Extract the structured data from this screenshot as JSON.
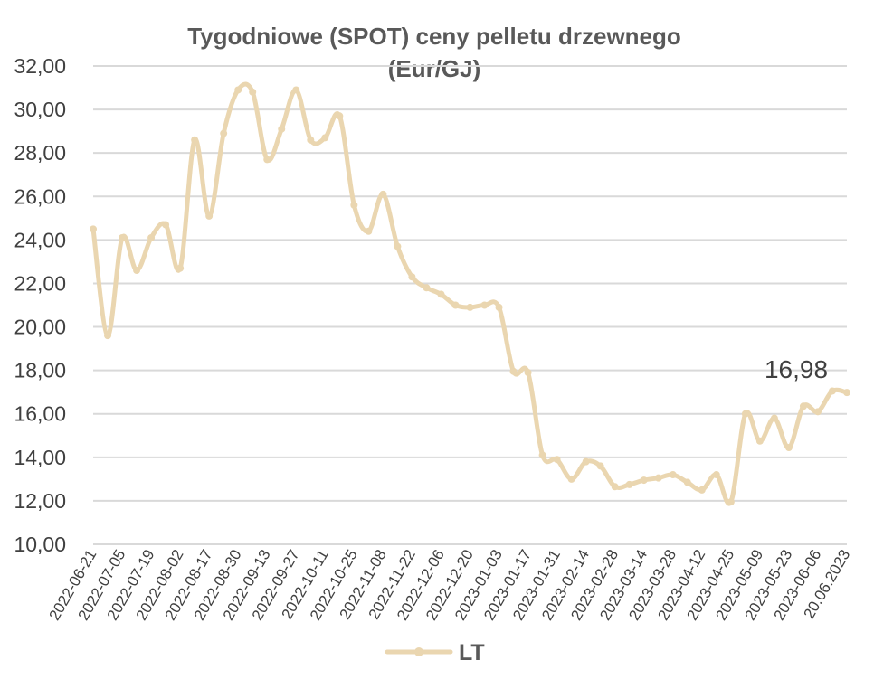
{
  "chart_data": {
    "type": "line",
    "title_line1": "Tygodniowe (SPOT) ceny pelletu drzewnego",
    "title_line2": "(Eur/GJ)",
    "xlabel": "",
    "ylabel": "",
    "ylim": [
      10,
      32
    ],
    "ytick_step": 2,
    "grid": true,
    "legend_position": "bottom",
    "color": "#ead6b0",
    "tick_labels": [
      "2022-06-21",
      "2022-07-05",
      "2022-07-19",
      "2022-08-02",
      "2022-08-17",
      "2022-08-30",
      "2022-09-13",
      "2022-09-27",
      "2022-10-11",
      "2022-10-25",
      "2022-11-08",
      "2022-11-22",
      "2022-12-06",
      "2022-12-20",
      "2023-01-03",
      "2023-01-17",
      "2023-01-31",
      "2023-02-14",
      "2023-02-28",
      "2023-03-14",
      "2023-03-28",
      "2023-04-12",
      "2023-04-25",
      "2023-05-09",
      "2023-05-23",
      "2023-06-06",
      "20.06.2023"
    ],
    "series": [
      {
        "name": "LT",
        "values": [
          24.5,
          19.6,
          24.1,
          22.6,
          24.1,
          24.7,
          22.7,
          28.6,
          25.1,
          28.9,
          30.9,
          30.8,
          27.7,
          29.1,
          30.9,
          28.6,
          28.7,
          29.7,
          25.6,
          24.4,
          26.1,
          23.7,
          22.3,
          21.8,
          21.5,
          21.0,
          20.9,
          21.0,
          20.9,
          17.95,
          17.9,
          14.1,
          13.9,
          13.0,
          13.8,
          13.6,
          12.65,
          12.75,
          12.95,
          13.05,
          13.2,
          12.85,
          12.5,
          13.2,
          11.95,
          16.0,
          14.75,
          15.8,
          14.45,
          16.35,
          16.1,
          17.05,
          16.98
        ]
      }
    ],
    "data_label": "16,98",
    "ytick_format": "pl-2dec"
  }
}
